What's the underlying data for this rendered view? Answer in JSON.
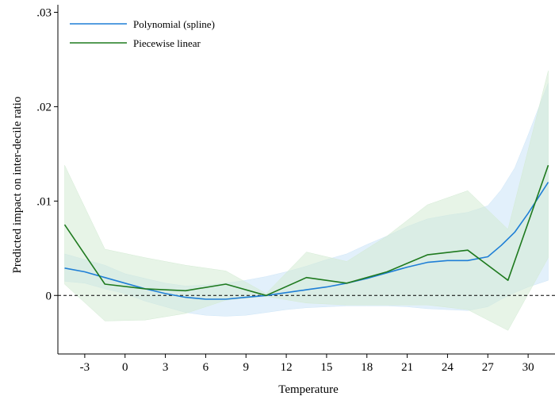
{
  "chart_data": {
    "type": "line",
    "xlabel": "Temperature",
    "ylabel": "Predicted impact on inter-decile ratio",
    "xlim": [
      -5,
      32
    ],
    "ylim": [
      -0.0062,
      0.0308
    ],
    "xticks": [
      -3,
      0,
      3,
      6,
      9,
      12,
      15,
      18,
      21,
      24,
      27,
      30
    ],
    "yticks": [
      0,
      0.01,
      0.02,
      0.03
    ],
    "ytick_labels": [
      "0",
      ".01",
      ".02",
      ".03"
    ],
    "reference_line": {
      "y": 0,
      "style": "dashed"
    },
    "legend": {
      "position": "top-left",
      "entries": [
        "Polynomial (spline)",
        "Piecewise linear"
      ]
    },
    "series": [
      {
        "name": "Polynomial (spline)",
        "color": "#1f7fd6",
        "band_color": "#cfe6f8",
        "x": [
          -4.5,
          -3,
          -1.5,
          0,
          1.5,
          3,
          4.5,
          6,
          7.5,
          9,
          10.5,
          12,
          13.5,
          15,
          16.5,
          18,
          19.5,
          21,
          22.5,
          24,
          25.5,
          27,
          28,
          29,
          30,
          31.5
        ],
        "y": [
          0.0029,
          0.0025,
          0.0019,
          0.0013,
          0.0007,
          0.0002,
          -0.0002,
          -0.0004,
          -0.0004,
          -0.0002,
          0.0,
          0.0003,
          0.0006,
          0.0009,
          0.0013,
          0.0018,
          0.0024,
          0.003,
          0.0035,
          0.0037,
          0.0037,
          0.0041,
          0.0053,
          0.0067,
          0.0087,
          0.012
        ],
        "lower": [
          0.0015,
          0.0013,
          0.0007,
          0.0002,
          -0.0006,
          -0.0012,
          -0.0018,
          -0.0021,
          -0.0022,
          -0.0021,
          -0.0018,
          -0.0015,
          -0.0013,
          -0.0012,
          -0.0011,
          -0.0011,
          -0.0011,
          -0.0012,
          -0.0014,
          -0.0015,
          -0.0016,
          -0.0012,
          -0.0004,
          0.0003,
          0.0009,
          0.0016
        ],
        "upper": [
          0.0044,
          0.0038,
          0.0032,
          0.0023,
          0.0018,
          0.0013,
          0.001,
          0.0011,
          0.0013,
          0.0016,
          0.002,
          0.0025,
          0.0031,
          0.0038,
          0.0044,
          0.0054,
          0.0063,
          0.0073,
          0.0081,
          0.0085,
          0.0088,
          0.0095,
          0.0112,
          0.0135,
          0.017,
          0.0225
        ]
      },
      {
        "name": "Piecewise linear",
        "color": "#1f7a1f",
        "band_color": "#d4ebd4",
        "x": [
          -4.5,
          -1.5,
          1.5,
          4.5,
          7.5,
          10.5,
          13.5,
          16.5,
          19.5,
          22.5,
          25.5,
          28.5,
          31.5
        ],
        "y": [
          0.0075,
          0.0012,
          0.0007,
          0.0005,
          0.0012,
          0.0,
          0.0019,
          0.0013,
          0.0025,
          0.0043,
          0.0048,
          0.0016,
          0.0138
        ],
        "lower": [
          0.0012,
          -0.0027,
          -0.0026,
          -0.0019,
          -0.0005,
          -0.0001,
          -0.0008,
          -0.001,
          -0.001,
          -0.001,
          -0.0015,
          -0.0037,
          0.004
        ],
        "upper": [
          0.0138,
          0.0049,
          0.004,
          0.0032,
          0.0026,
          0.0002,
          0.0046,
          0.0036,
          0.0063,
          0.0096,
          0.0111,
          0.007,
          0.0238
        ]
      }
    ]
  }
}
